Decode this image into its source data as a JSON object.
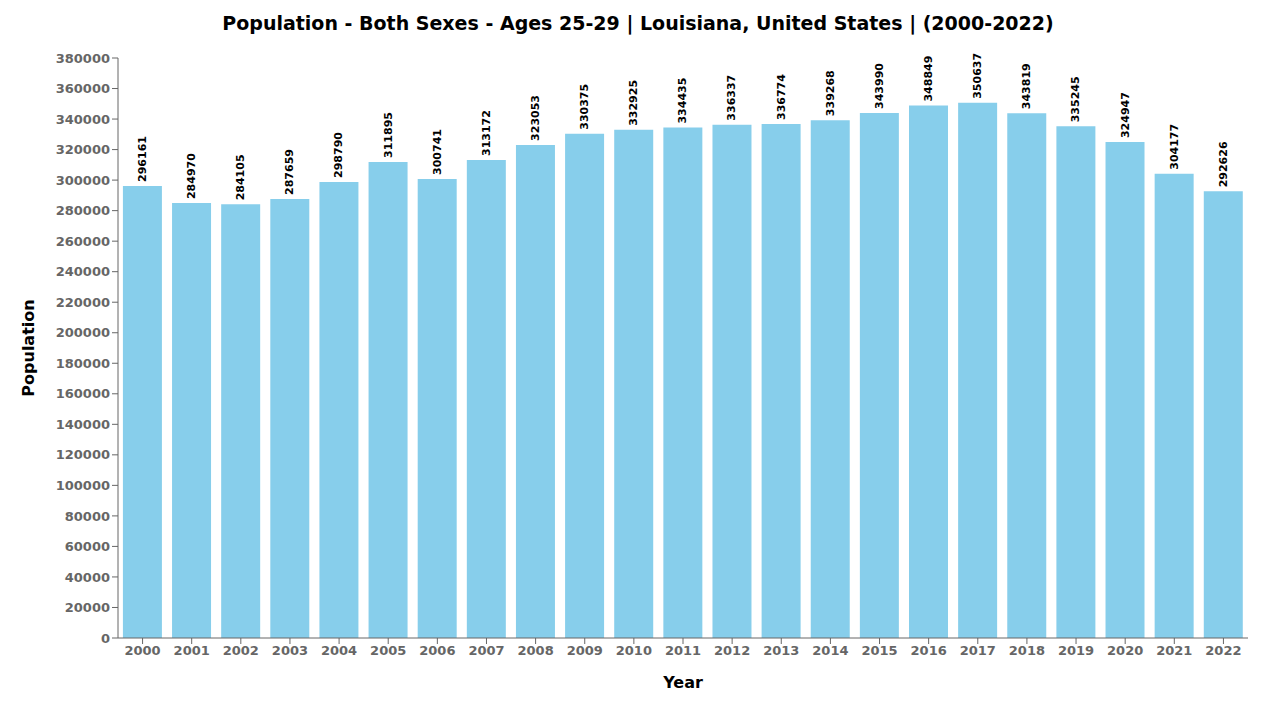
{
  "chart_data": {
    "type": "bar",
    "title": "Population - Both Sexes - Ages 25-29 | Louisiana, United States |  (2000-2022)",
    "x_label": "Year",
    "y_label": "Population",
    "categories": [
      "2000",
      "2001",
      "2002",
      "2003",
      "2004",
      "2005",
      "2006",
      "2007",
      "2008",
      "2009",
      "2010",
      "2011",
      "2012",
      "2013",
      "2014",
      "2015",
      "2016",
      "2017",
      "2018",
      "2019",
      "2020",
      "2021",
      "2022"
    ],
    "values": [
      296161,
      284970,
      284105,
      287659,
      298790,
      311895,
      300741,
      313172,
      323053,
      330375,
      332925,
      334435,
      336337,
      336774,
      339268,
      343990,
      348849,
      350637,
      343819,
      335245,
      324947,
      304177,
      292626
    ],
    "color": "#87CEEB",
    "ylim": [
      0,
      380000
    ],
    "yticks": [
      0,
      20000,
      40000,
      60000,
      80000,
      100000,
      120000,
      140000,
      160000,
      180000,
      200000,
      220000,
      240000,
      260000,
      280000,
      300000,
      320000,
      340000,
      360000,
      380000
    ],
    "grid": false,
    "data_labels": true
  }
}
